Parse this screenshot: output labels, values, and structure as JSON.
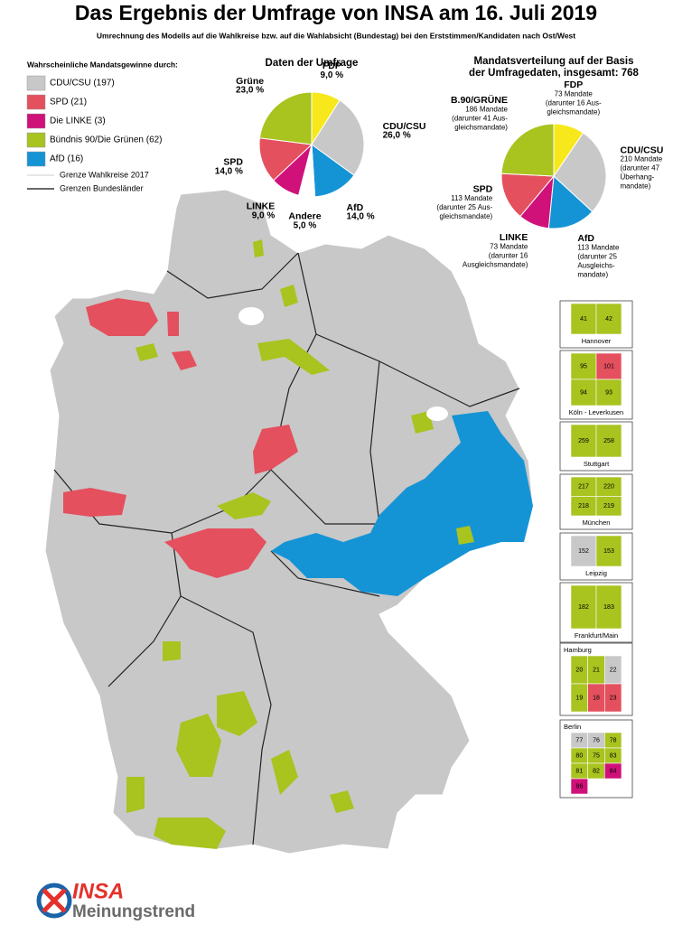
{
  "header": {
    "title": "Das Ergebnis der Umfrage von INSA am 16. Juli 2019",
    "subtitle": "Umrechnung des Modells auf die Wahlkreise bzw. auf die Wahlabsicht (Bundestag) bei den Erststimmen/Kandidaten nach Ost/West"
  },
  "legend": {
    "title": "Wahrscheinliche Mandatsgewinne durch:",
    "items": [
      {
        "label": "CDU/CSU (197)",
        "color": "#c8c8c8"
      },
      {
        "label": "SPD (21)",
        "color": "#e4505e"
      },
      {
        "label": "Die LINKE (3)",
        "color": "#cf1179"
      },
      {
        "label": "Bündnis 90/Die Grünen (62)",
        "color": "#a9c31f"
      },
      {
        "label": "AfD (16)",
        "color": "#1594d5"
      }
    ],
    "lines": [
      "Grenze Wahlkreise 2017",
      "Grenzen Bundesländer"
    ]
  },
  "chart_data": [
    {
      "type": "pie",
      "title": "Daten der Umfrage",
      "categories": [
        "FDP",
        "CDU/CSU",
        "AfD",
        "Andere",
        "LINKE",
        "SPD",
        "Grüne"
      ],
      "values": [
        9,
        26,
        14,
        5,
        9,
        14,
        23
      ],
      "value_labels": [
        "9,0 %",
        "26,0 %",
        "14,0 %",
        "5,0 %",
        "9,0 %",
        "14,0 %",
        "23,0 %"
      ],
      "colors": [
        "#f6e81b",
        "#c8c8c8",
        "#1594d5",
        "#ffffff",
        "#cf1179",
        "#e4505e",
        "#a9c31f"
      ]
    },
    {
      "type": "pie",
      "title": [
        "Mandatsverteilung auf der Basis",
        "der Umfragedaten, insgesamt: 768"
      ],
      "categories": [
        "FDP",
        "CDU/CSU",
        "AfD",
        "LINKE",
        "SPD",
        "B.90/GRÜNE"
      ],
      "values": [
        73,
        210,
        113,
        73,
        113,
        186
      ],
      "value_labels": [
        "73 Mandate",
        "210 Mandate",
        "113 Mandate",
        "73 Mandate",
        "113 Mandate",
        "186 Mandate"
      ],
      "notes": [
        [
          "(darunter 16 Aus-",
          "gleichsmandate)"
        ],
        [
          "(darunter 47",
          "Überhang-",
          "mandate)"
        ],
        [
          "(darunter 25",
          "Ausgleichs-",
          "mandate)"
        ],
        [
          "(darunter 16",
          "Ausgleichsmandate)"
        ],
        [
          "(darunter 25 Aus-",
          "gleichsmandate)"
        ],
        [
          "(darunter 41 Aus-",
          "gleichsmandate)"
        ]
      ],
      "colors": [
        "#f6e81b",
        "#c8c8c8",
        "#1594d5",
        "#cf1179",
        "#e4505e",
        "#a9c31f"
      ]
    }
  ],
  "insets": [
    {
      "name": "Hannover",
      "labels": [
        "41",
        "42"
      ]
    },
    {
      "name": "Köln -  Leverkusen",
      "labels": [
        "95",
        "101",
        "94",
        "93"
      ]
    },
    {
      "name": "Stuttgart",
      "labels": [
        "259",
        "258"
      ]
    },
    {
      "name": "München",
      "labels": [
        "217",
        "220",
        "218",
        "219"
      ]
    },
    {
      "name": "Leipzig",
      "labels": [
        "152",
        "153"
      ]
    },
    {
      "name": "Frankfurt/Main",
      "labels": [
        "182",
        "183"
      ]
    },
    {
      "name": "Hamburg",
      "labels": [
        "20",
        "21",
        "22",
        "19",
        "18",
        "23"
      ]
    },
    {
      "name": "Berlin",
      "labels": [
        "77",
        "76",
        "78",
        "80",
        "75",
        "83",
        "81",
        "82",
        "84",
        "86"
      ]
    }
  ],
  "logo": {
    "brand": "INSA",
    "tagline": "Meinungstrend"
  }
}
